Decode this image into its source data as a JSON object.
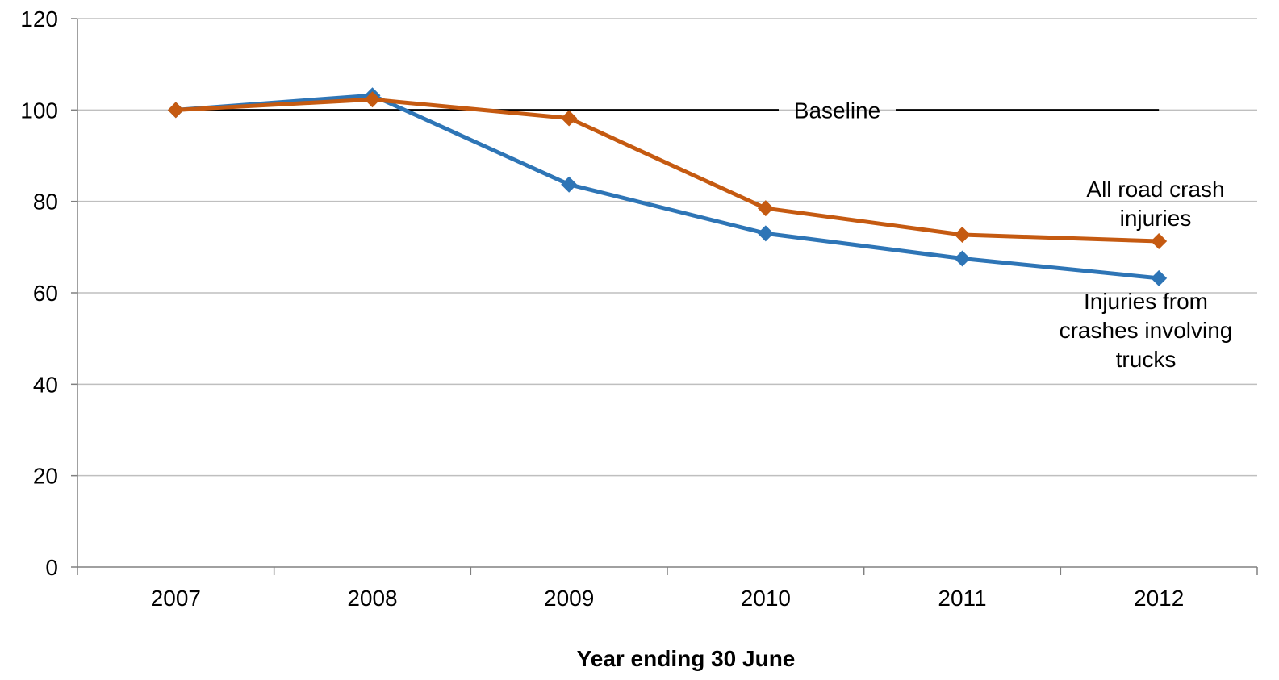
{
  "chart_data": {
    "type": "line",
    "title": "",
    "xlabel": "Year ending 30 June",
    "ylabel": "",
    "categories": [
      "2007",
      "2008",
      "2009",
      "2010",
      "2011",
      "2012"
    ],
    "ylim": [
      0,
      120
    ],
    "yticks": [
      0,
      20,
      40,
      60,
      80,
      100,
      120
    ],
    "grid": true,
    "baseline": {
      "value": 100,
      "label": "Baseline",
      "color": "#000000"
    },
    "series": [
      {
        "name": "All road crash injuries",
        "label_lines": [
          "All road crash",
          "injuries"
        ],
        "color": "#C55A11",
        "marker": "diamond",
        "values": [
          100,
          102.3,
          98.2,
          78.5,
          72.7,
          71.3
        ]
      },
      {
        "name": "Injuries from crashes involving trucks",
        "label_lines": [
          "Injuries from",
          "crashes involving",
          "trucks"
        ],
        "color": "#2E75B6",
        "marker": "diamond",
        "values": [
          100,
          103.2,
          83.7,
          73.0,
          67.5,
          63.2
        ]
      }
    ]
  }
}
